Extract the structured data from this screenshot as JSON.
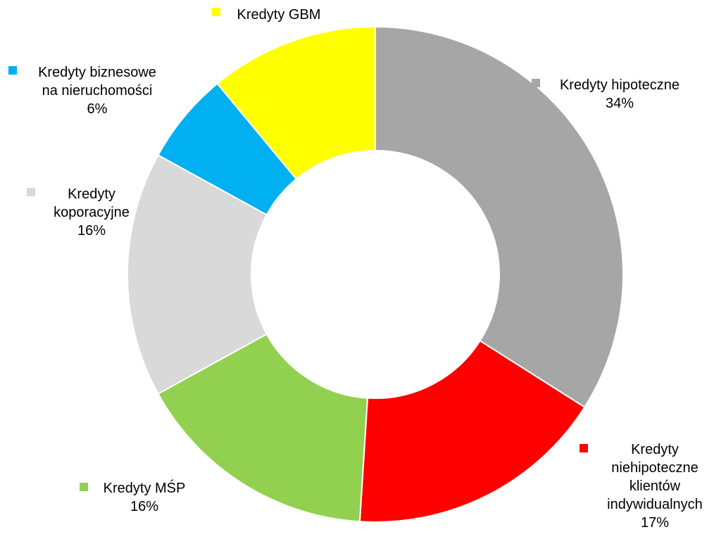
{
  "chart_data": {
    "type": "pie",
    "style": "donut",
    "slices": [
      {
        "id": "hipoteczne",
        "lines": [
          "Kredyty hipoteczne"
        ],
        "percent_label": "34%",
        "value": 34,
        "color": "#A6A6A6"
      },
      {
        "id": "niehipoteczne",
        "lines": [
          "Kredyty",
          "niehipoteczne",
          "klientów",
          "indywidualnych"
        ],
        "percent_label": "17%",
        "value": 17,
        "color": "#FF0000"
      },
      {
        "id": "msp",
        "lines": [
          "Kredyty MŚP"
        ],
        "percent_label": "16%",
        "value": 16,
        "color": "#92D050"
      },
      {
        "id": "korporacyjne",
        "lines": [
          "Kredyty",
          "koporacyjne"
        ],
        "percent_label": "16%",
        "value": 16,
        "color": "#D9D9D9"
      },
      {
        "id": "biznesowe",
        "lines": [
          "Kredyty biznesowe",
          "na nieruchomości"
        ],
        "percent_label": "6%",
        "value": 6,
        "color": "#00B0F0"
      },
      {
        "id": "gbm",
        "lines": [
          "Kredyty GBM"
        ],
        "percent_label": "",
        "value": 11,
        "color": "#FFFF00"
      }
    ]
  }
}
